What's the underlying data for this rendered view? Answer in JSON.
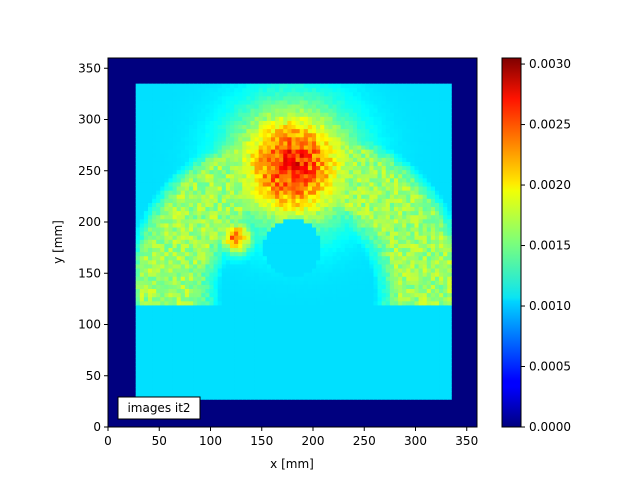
{
  "chart_data": {
    "type": "heatmap",
    "title": "",
    "xlabel": "x [mm]",
    "ylabel": "y [mm]",
    "xlim": [
      0,
      360
    ],
    "ylim": [
      0,
      360
    ],
    "xticks": [
      "0",
      "50",
      "100",
      "150",
      "200",
      "250",
      "300",
      "350"
    ],
    "yticks": [
      "0",
      "50",
      "100",
      "150",
      "200",
      "250",
      "300",
      "350"
    ],
    "colormap": "jet",
    "colorbar": {
      "range": [
        0,
        0.00305
      ],
      "ticks": [
        "0.0000",
        "0.0005",
        "0.0010",
        "0.0015",
        "0.0020",
        "0.0025",
        "0.0030"
      ]
    },
    "background_value": 0.0,
    "field": {
      "x_range": [
        27,
        333
      ],
      "y_range": [
        27,
        333
      ],
      "baseline_value": 0.00105
    },
    "features": [
      {
        "shape": "half-annulus",
        "center": [
          185,
          130
        ],
        "inner_radius": 100,
        "outer_radius": 170,
        "value": 0.0018
      },
      {
        "shape": "blob",
        "center": [
          180,
          255
        ],
        "radius": 38,
        "value": 0.0029
      },
      {
        "shape": "blob",
        "center": [
          125,
          185
        ],
        "radius": 10,
        "value": 0.0026
      },
      {
        "shape": "hole",
        "center": [
          180,
          175
        ],
        "radius": 28,
        "value": 0.00105
      }
    ],
    "grid": false,
    "annotation": "images it2"
  }
}
